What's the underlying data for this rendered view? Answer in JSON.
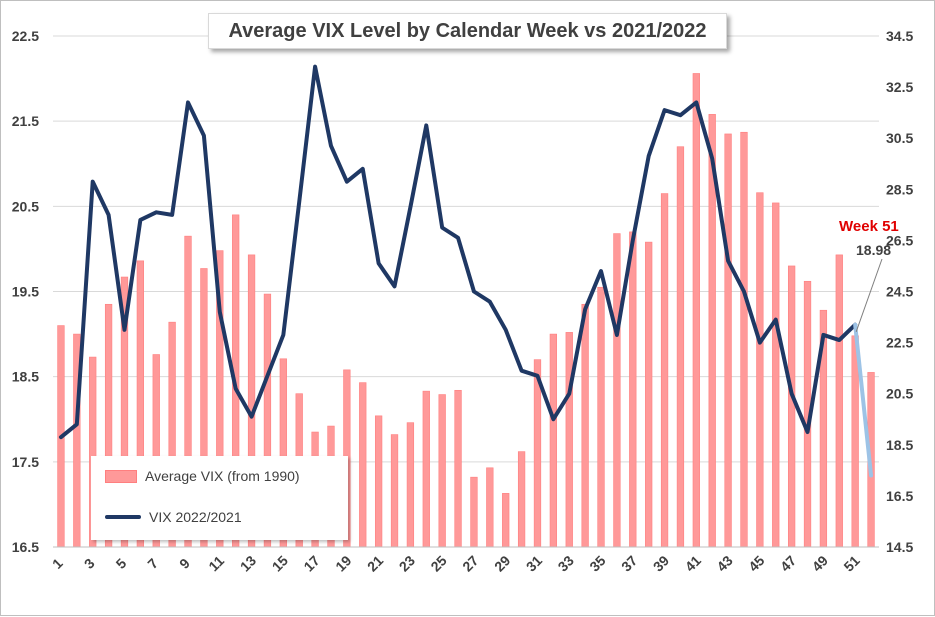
{
  "chart_data": {
    "type": "bar",
    "title": "Average VIX Level by Calendar Week vs 2021/2022",
    "x": [
      1,
      2,
      3,
      4,
      5,
      6,
      7,
      8,
      9,
      10,
      11,
      12,
      13,
      14,
      15,
      16,
      17,
      18,
      19,
      20,
      21,
      22,
      23,
      24,
      25,
      26,
      27,
      28,
      29,
      30,
      31,
      32,
      33,
      34,
      35,
      36,
      37,
      38,
      39,
      40,
      41,
      42,
      43,
      44,
      45,
      46,
      47,
      48,
      49,
      50,
      51,
      52
    ],
    "x_tick_labels": [
      "1",
      "3",
      "5",
      "7",
      "9",
      "11",
      "13",
      "15",
      "17",
      "19",
      "21",
      "23",
      "25",
      "27",
      "29",
      "31",
      "33",
      "35",
      "37",
      "39",
      "41",
      "43",
      "45",
      "47",
      "49",
      "51"
    ],
    "y_left_ticks": [
      "16.5",
      "17.5",
      "18.5",
      "19.5",
      "20.5",
      "21.5",
      "22.5"
    ],
    "y_right_ticks": [
      "14.5",
      "16.5",
      "18.5",
      "20.5",
      "22.5",
      "24.5",
      "26.5",
      "28.5",
      "30.5",
      "32.5",
      "34.5"
    ],
    "ylim_left": [
      16.5,
      22.5
    ],
    "ylim_right": [
      14.5,
      34.5
    ],
    "series": [
      {
        "name": "Average VIX (from 1990)",
        "axis": "left",
        "kind": "bar",
        "values": [
          19.1,
          19.0,
          18.73,
          19.35,
          19.67,
          19.86,
          18.76,
          19.14,
          20.15,
          19.77,
          19.98,
          20.4,
          19.93,
          19.47,
          18.71,
          18.3,
          17.85,
          17.92,
          18.58,
          18.43,
          18.04,
          17.82,
          17.96,
          18.33,
          18.29,
          18.34,
          17.32,
          17.43,
          17.13,
          17.62,
          18.7,
          19.0,
          19.02,
          19.35,
          19.55,
          20.18,
          20.2,
          20.08,
          20.65,
          21.2,
          22.06,
          21.58,
          21.35,
          21.37,
          20.66,
          20.54,
          19.8,
          19.62,
          19.28,
          19.93,
          18.98,
          18.55
        ]
      },
      {
        "name": "VIX 2022/2021",
        "axis": "right",
        "kind": "line",
        "values": [
          18.8,
          19.3,
          28.8,
          27.5,
          23.0,
          27.3,
          27.6,
          27.5,
          31.9,
          30.6,
          23.7,
          20.7,
          19.6,
          21.2,
          22.8,
          28.0,
          33.3,
          30.2,
          28.8,
          29.3,
          25.6,
          24.7,
          27.8,
          31.0,
          27.0,
          26.6,
          24.5,
          24.1,
          23.0,
          21.4,
          21.2,
          19.5,
          20.5,
          23.8,
          25.3,
          22.8,
          26.5,
          29.8,
          31.6,
          31.4,
          31.9,
          29.7,
          25.7,
          24.5,
          22.5,
          23.4,
          20.5,
          19.0,
          22.8,
          22.6,
          23.2,
          17.3
        ]
      }
    ],
    "annotation": {
      "label": "Week 51",
      "value": "18.98",
      "week": 51
    },
    "legend_position": "bottom-left",
    "colors": {
      "bar": "#ff9999",
      "bar_edge": "#ff7f7f",
      "line": "#1f3864",
      "annotation": "#e00000",
      "grid": "#d9d9d9"
    },
    "grid": true
  }
}
